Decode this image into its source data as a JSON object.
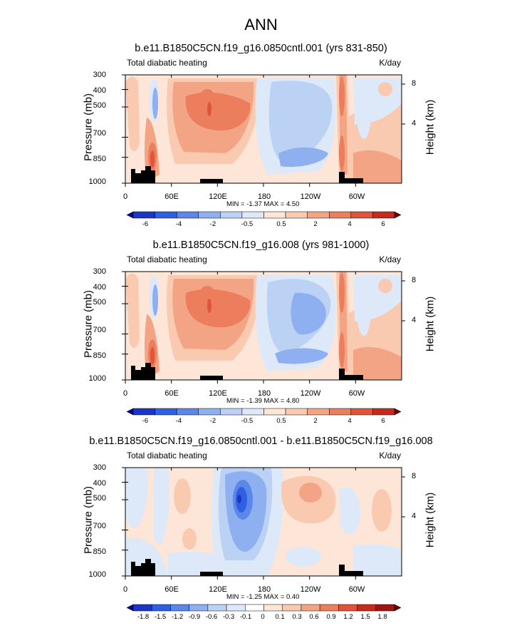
{
  "title": "ANN",
  "chart_data": [
    {
      "type": "heatmap",
      "title": "b.e11.B1850C5CN.f19_g16.0850cntl.001 (yrs 831-850)",
      "left_string": "Total diabatic heating",
      "right_string": "K/day",
      "ylabel": "Pressure (mb)",
      "ylabel_right": "Height (km)",
      "yticks": [
        "300",
        "400",
        "500",
        "700",
        "850",
        "1000"
      ],
      "yticks_right": [
        "8",
        "4"
      ],
      "xticks": [
        "0",
        "60E",
        "120E",
        "180",
        "120W",
        "60W"
      ],
      "min_max": "MIN = -1.37  MAX = 4.50",
      "colorbar_labels": [
        "-6",
        "-4",
        "-2",
        "-0.5",
        "0.5",
        "2",
        "4",
        "6"
      ],
      "variant": "control",
      "xlim": [
        0,
        360
      ],
      "ylim": [
        1000,
        300
      ]
    },
    {
      "type": "heatmap",
      "title": "b.e11.B1850C5CN.f19_g16.008 (yrs 981-1000)",
      "left_string": "Total diabatic heating",
      "right_string": "K/day",
      "ylabel": "Pressure (mb)",
      "ylabel_right": "Height (km)",
      "yticks": [
        "300",
        "400",
        "500",
        "700",
        "850",
        "1000"
      ],
      "yticks_right": [
        "8",
        "4"
      ],
      "xticks": [
        "0",
        "60E",
        "120E",
        "180",
        "120W",
        "60W"
      ],
      "min_max": "MIN = -1.39  MAX = 4.80",
      "colorbar_labels": [
        "-6",
        "-4",
        "-2",
        "-0.5",
        "0.5",
        "2",
        "4",
        "6"
      ],
      "variant": "test",
      "xlim": [
        0,
        360
      ],
      "ylim": [
        1000,
        300
      ]
    },
    {
      "type": "heatmap",
      "title": "b.e11.B1850C5CN.f19_g16.0850cntl.001 - b.e11.B1850C5CN.f19_g16.008",
      "left_string": "Total diabatic heating",
      "right_string": "K/day",
      "ylabel": "Pressure (mb)",
      "ylabel_right": "Height (km)",
      "yticks": [
        "300",
        "400",
        "500",
        "700",
        "850",
        "1000"
      ],
      "yticks_right": [
        "8",
        "4"
      ],
      "xticks": [
        "0",
        "60E",
        "120E",
        "180",
        "120W",
        "60W"
      ],
      "min_max": "MIN = -1.25  MAX = 0.40",
      "colorbar_labels": [
        "-1.8",
        "-1.5",
        "-1.2",
        "-0.9",
        "-0.6",
        "-0.3",
        "-0.1",
        "0",
        "0.1",
        "0.3",
        "0.6",
        "0.9",
        "1.2",
        "1.5",
        "1.8"
      ],
      "variant": "diff",
      "xlim": [
        0,
        360
      ],
      "ylim": [
        1000,
        300
      ]
    }
  ],
  "colors": {
    "colorbar_full": [
      "#06068f",
      "#1b35c6",
      "#2f60e0",
      "#5b86ea",
      "#8fb0f0",
      "#bcd2f5",
      "#dde9f9",
      "#ffffff",
      "#fde5d8",
      "#f9c9b0",
      "#f3a485",
      "#ec7d5d",
      "#e0543a",
      "#c52b1c",
      "#9d1610",
      "#6b0606"
    ],
    "colorbar_abs": [
      "#06068f",
      "#1b35c6",
      "#2f60e0",
      "#5b86ea",
      "#8fb0f0",
      "#bcd2f5",
      "#dde9f9",
      "#fde5d8",
      "#f9c9b0",
      "#f3a485",
      "#ec7d5d",
      "#e0543a",
      "#c52b1c",
      "#6b0606"
    ],
    "topography": "#000000"
  }
}
